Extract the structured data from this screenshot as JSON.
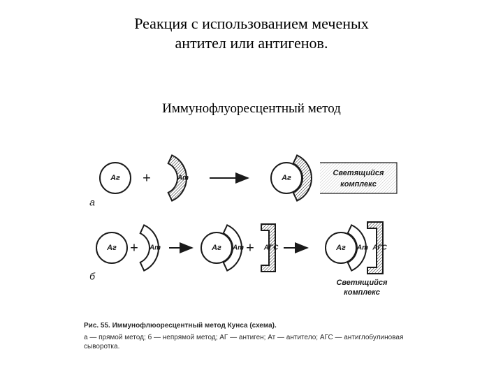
{
  "title_line1": "Реакция с использованием меченых",
  "title_line2": "антител или антигенов.",
  "subtitle": "Иммунофлуоресцентный метод",
  "caption_title": "Рис. 55. Иммунофлюоресцентный метод Кунса (схема).",
  "caption_legend": "а — прямой метод; б — непрямой метод; АГ — антиген; Ат — антитело; АГС — антиглобулиновая сыворотка.",
  "diagram": {
    "type": "flowchart",
    "background_color": "#ffffff",
    "stroke": "#1a1a1a",
    "stroke_width": 2,
    "hatch_gap": 3,
    "label_font_family": "Arial, sans-serif",
    "label_font_size": 11,
    "label_font_weight": "bold",
    "op_font_size": 20,
    "result_label_font_size": 11,
    "row_a": {
      "row_label": "а",
      "result_label_l1": "Светящийся",
      "result_label_l2": "комплекс",
      "steps": [
        {
          "circle": "Аг"
        },
        {
          "op": "+"
        },
        {
          "crescent": "Ат",
          "hatched": true
        },
        {
          "arrow": true
        },
        {
          "circle": "Аг",
          "crescent": "",
          "hatched": true
        }
      ]
    },
    "row_b": {
      "row_label": "б",
      "result_label_l1": "Светящийся",
      "result_label_l2": "комплекс",
      "steps": [
        {
          "circle": "Аг"
        },
        {
          "op": "+"
        },
        {
          "crescent": "Ат",
          "hatched": false
        },
        {
          "arrow": true
        },
        {
          "circle": "Аг",
          "crescent": "Ат",
          "hatched": false
        },
        {
          "op": "+"
        },
        {
          "bracket": "АГС",
          "hatched": true
        },
        {
          "arrow": true
        },
        {
          "circle": "Аг",
          "crescent": "Ат",
          "bracket": "АГС",
          "hatched_bracket": true
        }
      ]
    }
  }
}
